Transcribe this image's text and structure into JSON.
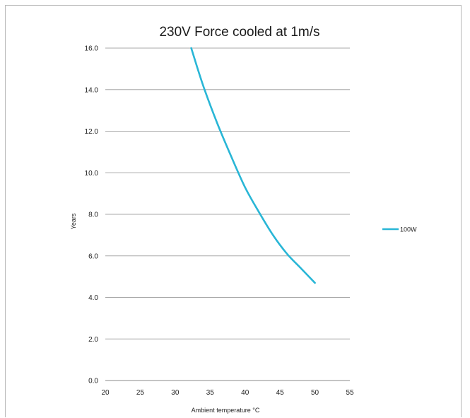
{
  "chart_data": {
    "type": "line",
    "title": "230V Force cooled at 1m/s",
    "xlabel": "Ambient temperature °C",
    "ylabel": "Years",
    "xlim": [
      20,
      55
    ],
    "ylim": [
      0,
      16
    ],
    "xticks": [
      "20",
      "25",
      "30",
      "35",
      "40",
      "45",
      "50",
      "55"
    ],
    "yticks": [
      "0.0",
      "2.0",
      "4.0",
      "6.0",
      "8.0",
      "10.0",
      "12.0",
      "14.0",
      "16.0"
    ],
    "grid": "horizontal",
    "legend_position": "right",
    "series": [
      {
        "name": "100W",
        "color": "#29b6d6",
        "x": [
          32.3,
          34,
          36,
          38,
          40,
          42,
          44,
          46,
          48,
          50
        ],
        "y": [
          16.0,
          14.2,
          12.4,
          10.8,
          9.3,
          8.1,
          7.0,
          6.1,
          5.4,
          4.7
        ]
      }
    ]
  }
}
